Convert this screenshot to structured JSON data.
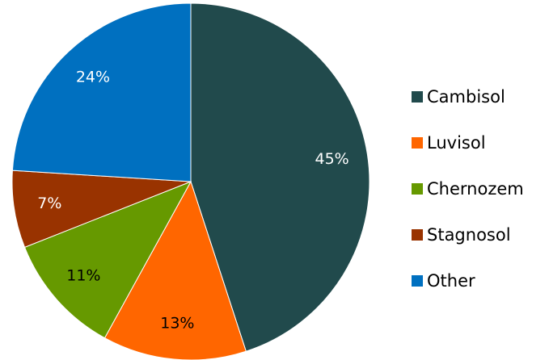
{
  "chart_data": {
    "type": "pie",
    "categories": [
      "Cambisol",
      "Luvisol",
      "Chernozem",
      "Stagnosol",
      "Other"
    ],
    "values": [
      45,
      13,
      11,
      7,
      24
    ],
    "value_labels": [
      "45%",
      "13%",
      "11%",
      "7%",
      "24%"
    ],
    "colors": [
      "#214a4c",
      "#ff6600",
      "#669900",
      "#993300",
      "#0070c0"
    ],
    "legend": "right"
  }
}
